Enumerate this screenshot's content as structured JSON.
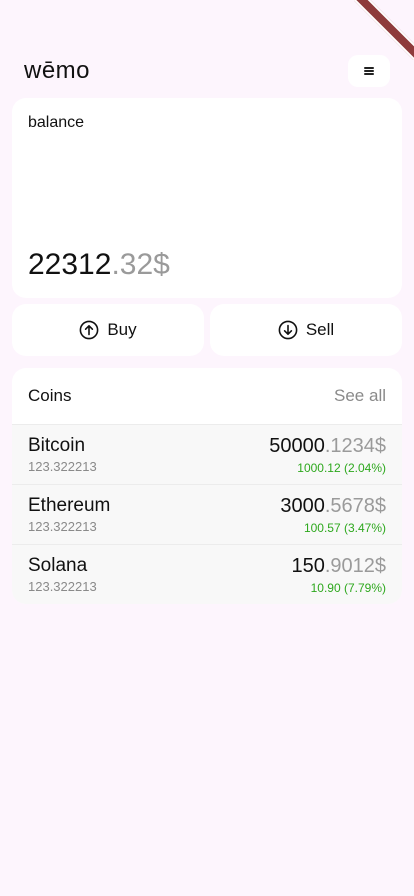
{
  "header": {
    "logo": "wēmo",
    "menu_icon": "hamburger-menu-icon"
  },
  "balance": {
    "label": "balance",
    "value_int": "22312",
    "value_dec": ".32$"
  },
  "actions": {
    "buy": {
      "label": "Buy",
      "icon": "arrow-up-circle-icon"
    },
    "sell": {
      "label": "Sell",
      "icon": "arrow-down-circle-icon"
    }
  },
  "coins": {
    "title": "Coins",
    "see_all": "See all",
    "items": [
      {
        "name": "Bitcoin",
        "amount": "123.322213",
        "price_int": "50000",
        "price_dec": ".1234$",
        "change": "1000.12 (2.04%)"
      },
      {
        "name": "Ethereum",
        "amount": "123.322213",
        "price_int": "3000",
        "price_dec": ".5678$",
        "change": "100.57 (3.47%)"
      },
      {
        "name": "Solana",
        "amount": "123.322213",
        "price_int": "150",
        "price_dec": ".9012$",
        "change": "10.90 (7.79%)"
      }
    ]
  },
  "colors": {
    "background": "#fdf5fd",
    "card": "#ffffff",
    "positive": "#2ea81e",
    "muted": "#9a9a9a"
  }
}
